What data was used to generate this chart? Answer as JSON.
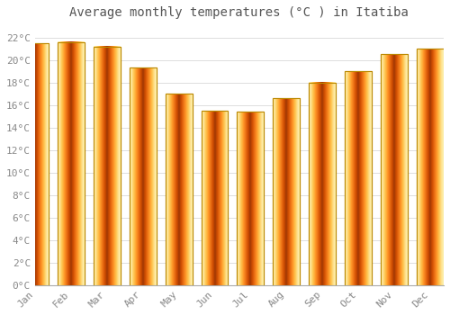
{
  "title": "Average monthly temperatures (°C ) in Itatiba",
  "months": [
    "Jan",
    "Feb",
    "Mar",
    "Apr",
    "May",
    "Jun",
    "Jul",
    "Aug",
    "Sep",
    "Oct",
    "Nov",
    "Dec"
  ],
  "values": [
    21.5,
    21.6,
    21.2,
    19.3,
    17.0,
    15.5,
    15.4,
    16.6,
    18.0,
    19.0,
    20.5,
    21.0
  ],
  "bar_color_center": "#FFD040",
  "bar_color_edge": "#FFA500",
  "bar_border_color": "#CC8800",
  "ylim": [
    0,
    23
  ],
  "yticks": [
    0,
    2,
    4,
    6,
    8,
    10,
    12,
    14,
    16,
    18,
    20,
    22
  ],
  "ytick_labels": [
    "0°C",
    "2°C",
    "4°C",
    "6°C",
    "8°C",
    "10°C",
    "12°C",
    "14°C",
    "16°C",
    "18°C",
    "20°C",
    "22°C"
  ],
  "background_color": "#FFFFFF",
  "grid_color": "#DDDDDD",
  "title_fontsize": 10,
  "tick_fontsize": 8,
  "bar_width": 0.75
}
